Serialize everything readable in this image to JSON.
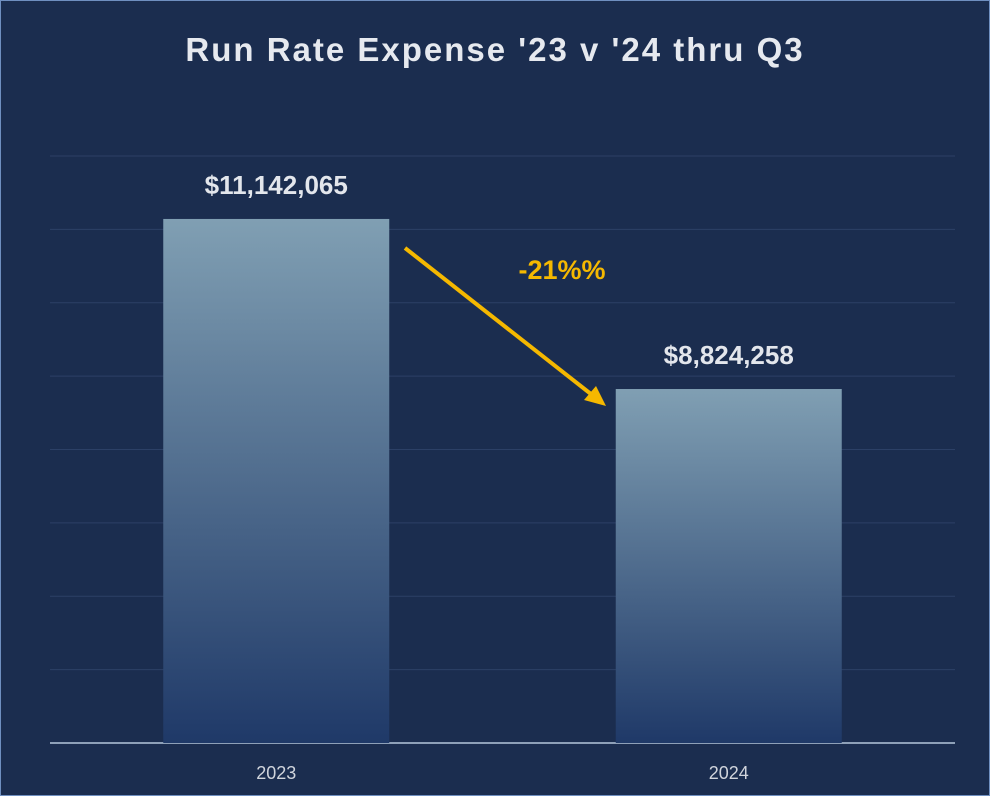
{
  "chart_data": {
    "type": "bar",
    "title": "Run Rate Expense '23 v '24 thru Q3",
    "categories": [
      "2023",
      "2024"
    ],
    "values": [
      11142065,
      8824258
    ],
    "value_labels": [
      "$11,142,065",
      "$8,824,258"
    ],
    "annotation": "-21%%",
    "ylim": [
      4000000,
      12000000
    ],
    "yticks": [
      4000000,
      5000000,
      6000000,
      7000000,
      8000000,
      9000000,
      10000000,
      11000000,
      12000000
    ],
    "grid": true
  }
}
